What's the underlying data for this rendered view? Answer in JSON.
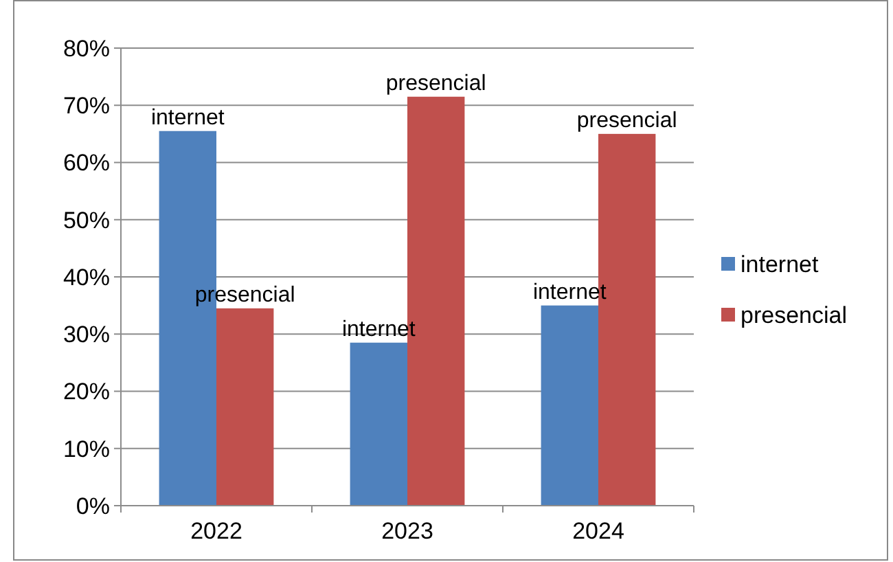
{
  "chart_data": {
    "type": "bar",
    "categories": [
      "2022",
      "2023",
      "2024"
    ],
    "series": [
      {
        "name": "internet",
        "color": "#4f81bd",
        "values": [
          65.5,
          28.5,
          35
        ],
        "value_labels": [
          "internet",
          "internet",
          "internet"
        ]
      },
      {
        "name": "presencial",
        "color": "#c0504d",
        "values": [
          34.5,
          71.5,
          65
        ],
        "value_labels": [
          "presencial",
          "presencial",
          "presencial"
        ]
      }
    ],
    "ylim": [
      0,
      80
    ],
    "yticks": [
      {
        "value": 0,
        "label": "0%"
      },
      {
        "value": 10,
        "label": "10%"
      },
      {
        "value": 20,
        "label": "20%"
      },
      {
        "value": 30,
        "label": "30%"
      },
      {
        "value": 40,
        "label": "40%"
      },
      {
        "value": 50,
        "label": "50%"
      },
      {
        "value": 60,
        "label": "60%"
      },
      {
        "value": 70,
        "label": "70%"
      },
      {
        "value": 80,
        "label": "80%"
      }
    ],
    "grid": "y",
    "legend": "right"
  }
}
